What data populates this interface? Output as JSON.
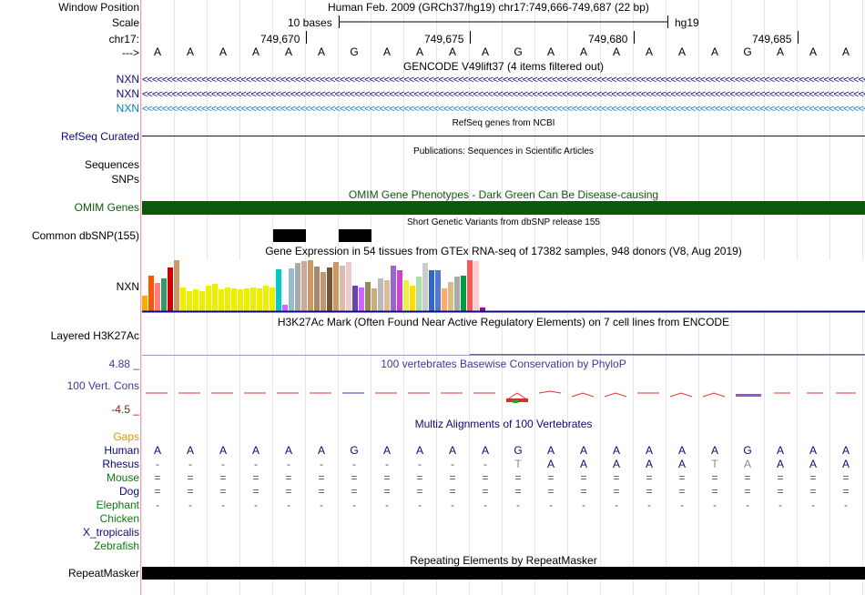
{
  "header": {
    "window_position_label": "Window Position",
    "position_text": "Human Feb. 2009 (GRCh37/hg19)   chr17:749,666-749,687 (22 bp)",
    "scale_label": "Scale",
    "scale_text": "10 bases",
    "assembly": "hg19",
    "chrom_label": "chr17:",
    "ticks": [
      "749,670",
      "749,675",
      "749,680",
      "749,685"
    ],
    "strand_label": "--->"
  },
  "sequence": [
    "A",
    "A",
    "A",
    "A",
    "A",
    "A",
    "G",
    "A",
    "A",
    "A",
    "A",
    "G",
    "A",
    "A",
    "A",
    "A",
    "A",
    "A",
    "G",
    "A",
    "A",
    "A"
  ],
  "gencode": {
    "title": "GENCODE V49lift37 (4 items filtered out)",
    "genes": [
      {
        "name": "NXN",
        "color": "#0a0a78"
      },
      {
        "name": "NXN",
        "color": "#0a0a78"
      },
      {
        "name": "NXN",
        "color": "#0c7bbf"
      }
    ],
    "chevrons": "<<<<<<<<<<<<<<<<<<<<<<<<<<<<<<<<<<<<<<<<<<<<<<<<<<<<<<<<<<<<<<<<<<<<<<<<<<<<<<<<<<<<<<<<<<<<<<<<<<<<<<<<<<<<<<<<<<<<<<<<<<<<<<<<<<<<<<<<<<<<<<<<<<<<<<<<<"
  },
  "refseq": {
    "title": "RefSeq genes from NCBI",
    "label": "RefSeq Curated"
  },
  "publications": {
    "title": "Publications: Sequences in Scientific Articles",
    "label1": "Sequences",
    "label2": "SNPs"
  },
  "omim": {
    "title": "OMIM Gene Phenotypes - Dark Green Can Be Disease-causing",
    "label": "OMIM Genes",
    "color": "#0b5a0b"
  },
  "dbsnp": {
    "title": "Short Genetic Variants from dbSNP release 155",
    "label": "Common dbSNP(155)"
  },
  "gtex": {
    "title": "Gene Expression in 54 tissues from GTEx RNA-seq of 17382 samples, 948 donors (V8, Aug 2019)",
    "label": "NXN",
    "values": [
      0.3,
      0.7,
      0.55,
      0.65,
      0.85,
      1.0,
      0.46,
      0.4,
      0.42,
      0.4,
      0.5,
      0.54,
      0.42,
      0.46,
      0.44,
      0.42,
      0.44,
      0.46,
      0.44,
      0.5,
      0.46,
      0.82,
      0.12,
      0.84,
      0.95,
      0.98,
      1.0,
      0.88,
      0.76,
      0.86,
      0.96,
      0.9,
      0.97,
      0.5,
      0.46,
      0.58,
      0.44,
      0.64,
      0.6,
      0.9,
      0.8,
      0.6,
      0.5,
      0.68,
      0.94,
      0.8,
      0.8,
      0.44,
      0.58,
      0.68,
      0.7,
      1.0,
      0.98,
      0.08
    ],
    "colors": [
      "#ffaa00",
      "#ff5500",
      "#ff7e7e",
      "#339966",
      "#cc0000",
      "#cc9966",
      "#eeee00",
      "#eeee00",
      "#eeee00",
      "#eeee00",
      "#eeee00",
      "#eeee00",
      "#eeee00",
      "#eeee00",
      "#eeee00",
      "#eeee00",
      "#eeee00",
      "#eeee00",
      "#eeee00",
      "#eeee00",
      "#eeee00",
      "#00cccc",
      "#cc66ff",
      "#99bbcc",
      "#aaaaaa",
      "#ccaa99",
      "#cc9966",
      "#aa8866",
      "#bb9977",
      "#775533",
      "#cc9966",
      "#ddbbaa",
      "#eecccc",
      "#6644aa",
      "#cc66ff",
      "#998855",
      "#ccaa88",
      "#bbbbbb",
      "#ddbb99",
      "#9966cc",
      "#cc44cc",
      "#eeee44",
      "#ffdd00",
      "#aaddaa",
      "#cccccc",
      "#3366cc",
      "#5577cc",
      "#ffaa66",
      "#ddbb88",
      "#aaaaaa",
      "#009944",
      "#ff5555",
      "#ffcccc",
      "#aa00aa"
    ]
  },
  "h3k27ac": {
    "title": "H3K27Ac Mark (Often Found Near Active Regulatory Elements) on 7 cell lines from ENCODE",
    "label": "Layered H3K27Ac"
  },
  "phylop": {
    "title": "100 vertebrates Basewise Conservation by PhyloP",
    "max": "4.88 _",
    "label": "100 Vert. Cons",
    "min": "-4.5 _",
    "color": "#3a3a9a"
  },
  "multiz": {
    "title": "Multiz Alignments of 100 Vertebrates",
    "gaps_label": "Gaps",
    "species": [
      {
        "name": "Human",
        "color": "#0a0a78",
        "row": [
          "A",
          "A",
          "A",
          "A",
          "A",
          "A",
          "G",
          "A",
          "A",
          "A",
          "A",
          "G",
          "A",
          "A",
          "A",
          "A",
          "A",
          "A",
          "G",
          "A",
          "A",
          "A"
        ]
      },
      {
        "name": "Rhesus",
        "color": "#0a0a78",
        "row": [
          "-",
          "-",
          "-",
          "-",
          "-",
          "-",
          "-",
          "-",
          "-",
          "-",
          "-",
          "T",
          "A",
          "A",
          "A",
          "A",
          "A",
          "T",
          "A",
          "A",
          "A",
          "A"
        ]
      },
      {
        "name": "Mouse",
        "color": "#107810",
        "row": [
          "=",
          "=",
          "=",
          "=",
          "=",
          "=",
          "=",
          "=",
          "=",
          "=",
          "=",
          "=",
          "=",
          "=",
          "=",
          "=",
          "=",
          "=",
          "=",
          "=",
          "=",
          "="
        ]
      },
      {
        "name": "Dog",
        "color": "#0a0a78",
        "row": [
          "=",
          "=",
          "=",
          "=",
          "=",
          "=",
          "=",
          "=",
          "=",
          "=",
          "=",
          "=",
          "=",
          "=",
          "=",
          "=",
          "=",
          "=",
          "=",
          "=",
          "=",
          "="
        ]
      },
      {
        "name": "Elephant",
        "color": "#107810",
        "row": [
          "-",
          "-",
          "-",
          "-",
          "-",
          "-",
          "-",
          "-",
          "-",
          "-",
          "-",
          "-",
          "-",
          "-",
          "-",
          "-",
          "-",
          "-",
          "-",
          "-",
          "-",
          "-"
        ]
      },
      {
        "name": "Chicken",
        "color": "#107810",
        "row": []
      },
      {
        "name": "X_tropicalis",
        "color": "#0a0a78",
        "row": []
      },
      {
        "name": "Zebrafish",
        "color": "#107810",
        "row": []
      }
    ]
  },
  "repeatmasker": {
    "title": "Repeating Elements by RepeatMasker",
    "label": "RepeatMasker"
  }
}
